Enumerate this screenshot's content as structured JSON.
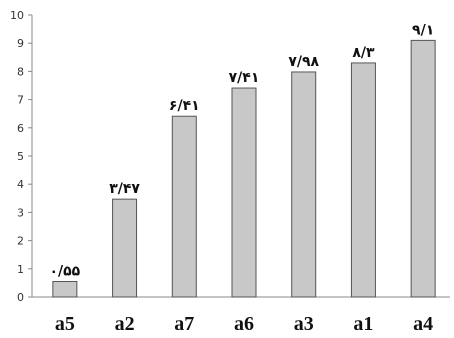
{
  "chart_data": {
    "type": "bar",
    "categories": [
      "a5",
      "a2",
      "a7",
      "a6",
      "a3",
      "a1",
      "a4"
    ],
    "values": [
      0.55,
      3.47,
      6.41,
      7.41,
      7.98,
      8.3,
      9.1
    ],
    "data_labels": [
      "۰/۵۵",
      "۳/۴۷",
      "۶/۴۱",
      "۷/۴۱",
      "۷/۹۸",
      "۸/۳",
      "۹/۱"
    ],
    "yticks": [
      "0",
      "1",
      "2",
      "3",
      "4",
      "5",
      "6",
      "7",
      "8",
      "9",
      "10"
    ],
    "ylim": [
      0,
      10
    ],
    "grid": false,
    "legend": "none",
    "colors": {
      "bar_fill": "#c8c8c8",
      "bar_stroke": "#555555",
      "axis": "#888888"
    }
  }
}
